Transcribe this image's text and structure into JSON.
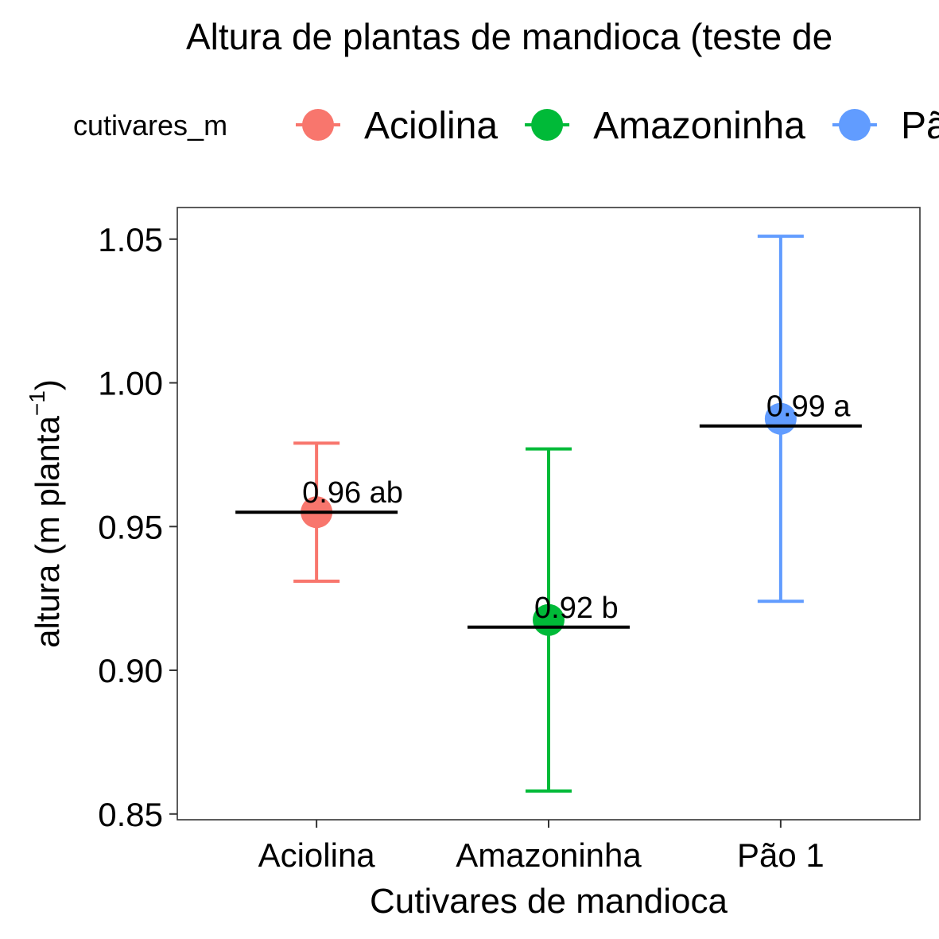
{
  "chart_data": {
    "type": "scatter",
    "title": "Altura de plantas de mandioca (teste de",
    "xlabel": "Cutivares de mandioca",
    "ylabel": {
      "prefix": "altura  (m planta",
      "superscript": "−1",
      "suffix": ")"
    },
    "legend": {
      "title": "cutivares_m",
      "position": "top"
    },
    "categories": [
      "Aciolina",
      "Amazoninha",
      "Pão 1"
    ],
    "ylim": [
      0.848,
      1.061
    ],
    "y_ticks": [
      {
        "value": 0.85,
        "label": "0.85"
      },
      {
        "value": 0.9,
        "label": "0.90"
      },
      {
        "value": 0.95,
        "label": "0.95"
      },
      {
        "value": 1.0,
        "label": "1.00"
      },
      {
        "value": 1.05,
        "label": "1.05"
      }
    ],
    "grid": false,
    "series": [
      {
        "name": "Aciolina",
        "color": "#F8766D",
        "value": 0.955,
        "ymin": 0.931,
        "ymax": 0.979,
        "mean_line": 0.955,
        "label": "0.96 ab"
      },
      {
        "name": "Amazoninha",
        "color": "#00BA38",
        "value": 0.9175,
        "ymin": 0.858,
        "ymax": 0.977,
        "mean_line": 0.915,
        "label": "0.92 b"
      },
      {
        "name": "Pão 1",
        "color": "#619CFF",
        "value": 0.9875,
        "ymin": 0.924,
        "ymax": 1.051,
        "mean_line": 0.985,
        "label": "0.99 a"
      }
    ]
  }
}
